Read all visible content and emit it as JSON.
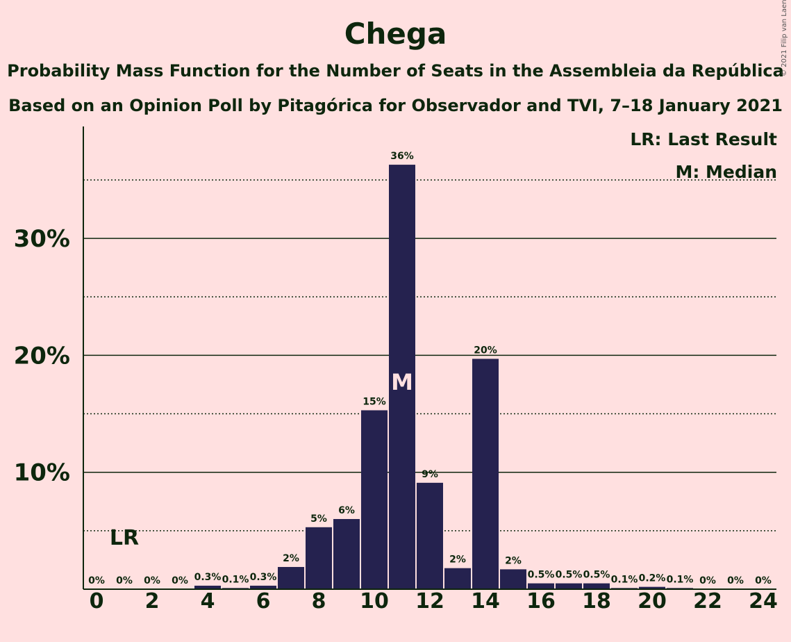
{
  "header": {
    "title": "Chega",
    "subtitle1": "Probability Mass Function for the Number of Seats in the Assembleia da República",
    "subtitle2": "Based on an Opinion Poll by Pitagórica for Observador and TVI, 7–18 January 2021",
    "copyright": "© 2021 Filip van Laenen"
  },
  "legend": {
    "last_result": "LR: Last Result",
    "median": "M: Median"
  },
  "colors": {
    "background": "#ffe0e0",
    "bar": "#25224f",
    "text": "#0d260d",
    "median_marker": "#ffe0e0"
  },
  "chart_data": {
    "type": "bar",
    "title": "Chega",
    "x": [
      0,
      1,
      2,
      3,
      4,
      5,
      6,
      7,
      8,
      9,
      10,
      11,
      12,
      13,
      14,
      15,
      16,
      17,
      18,
      19,
      20,
      21,
      22,
      23,
      24
    ],
    "values": [
      0,
      0,
      0,
      0,
      0.3,
      0.1,
      0.3,
      1.9,
      5.3,
      6.0,
      15.3,
      36.3,
      9.1,
      1.8,
      19.7,
      1.7,
      0.5,
      0.5,
      0.5,
      0.1,
      0.2,
      0.1,
      0,
      0,
      0
    ],
    "labels": [
      "0%",
      "0%",
      "0%",
      "0%",
      "0.3%",
      "0.1%",
      "0.3%",
      "2%",
      "5%",
      "6%",
      "15%",
      "36%",
      "9%",
      "2%",
      "20%",
      "2%",
      "0.5%",
      "0.5%",
      "0.5%",
      "0.1%",
      "0.2%",
      "0.1%",
      "0%",
      "0%",
      "0%"
    ],
    "x_ticks": [
      0,
      2,
      4,
      6,
      8,
      10,
      12,
      14,
      16,
      18,
      20,
      22,
      24
    ],
    "y_ticks": [
      10,
      20,
      30
    ],
    "y_tick_labels": [
      "10%",
      "20%",
      "30%"
    ],
    "minor_gridlines": [
      5,
      15,
      25,
      35
    ],
    "ylim": [
      0,
      39.6
    ],
    "last_result": 1,
    "last_result_label": "LR",
    "median": 11,
    "median_label": "M",
    "legend_position": "top-right"
  }
}
